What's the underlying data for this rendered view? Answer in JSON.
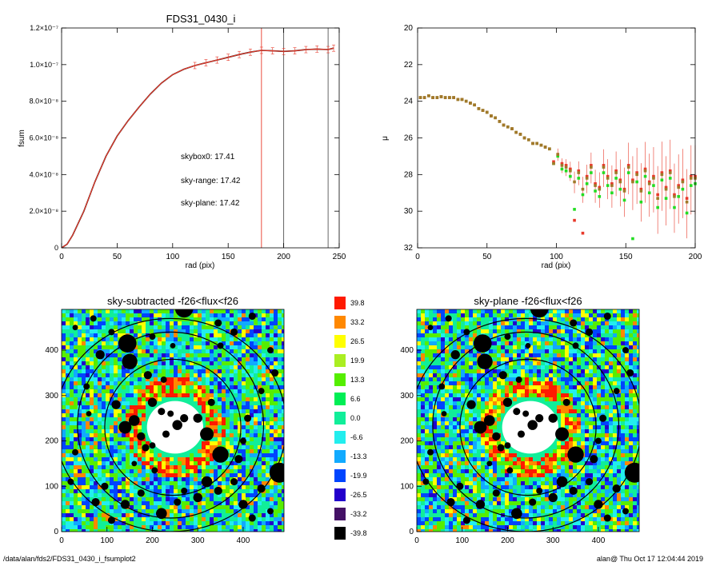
{
  "footer": {
    "path": "/data/alan/fds2/FDS31_0430_i_fsumplot2",
    "stamp": "alan@  Thu Oct 17 12:04:44 2019"
  },
  "chart_data": [
    {
      "id": "fsum",
      "type": "line",
      "title": "FDS31_0430_i",
      "xlabel": "rad (pix)",
      "ylabel": "fsum",
      "xlim": [
        0,
        250
      ],
      "ylim": [
        0,
        1.2e-07
      ],
      "xticks": [
        "0",
        "50",
        "100",
        "150",
        "200",
        "250"
      ],
      "yticks": [
        "0",
        "2.0×10⁻⁸",
        "4.0×10⁻⁸",
        "6.0×10⁻⁸",
        "8.0×10⁻⁸",
        "1.0×10⁻⁷",
        "1.2×10⁻⁷"
      ],
      "x": [
        0,
        5,
        10,
        20,
        30,
        40,
        50,
        60,
        70,
        80,
        90,
        100,
        110,
        120,
        130,
        140,
        150,
        160,
        170,
        180,
        190,
        200,
        210,
        220,
        230,
        240,
        245
      ],
      "series": [
        {
          "color": "#000000",
          "values": [
            0,
            2e-09,
            7e-09,
            2e-08,
            3.6e-08,
            5e-08,
            6.1e-08,
            6.95e-08,
            7.7e-08,
            8.4e-08,
            9e-08,
            9.45e-08,
            9.75e-08,
            9.95e-08,
            1.01e-07,
            1.025e-07,
            1.04e-07,
            1.055e-07,
            1.068e-07,
            1.078e-07,
            1.075e-07,
            1.072e-07,
            1.075e-07,
            1.082e-07,
            1.085e-07,
            1.082e-07,
            1.09e-07
          ]
        },
        {
          "color": "#e8392a",
          "values": [
            0,
            2e-09,
            7e-09,
            2e-08,
            3.6e-08,
            5e-08,
            6.1e-08,
            6.95e-08,
            7.7e-08,
            8.4e-08,
            9e-08,
            9.45e-08,
            9.75e-08,
            9.95e-08,
            1.01e-07,
            1.025e-07,
            1.04e-07,
            1.055e-07,
            1.068e-07,
            1.078e-07,
            1.075e-07,
            1.072e-07,
            1.075e-07,
            1.082e-07,
            1.085e-07,
            1.082e-07,
            1.09e-07
          ]
        }
      ],
      "vlines": [
        {
          "x": 180,
          "color": "#e8392a"
        },
        {
          "x": 200,
          "color": "#555555"
        },
        {
          "x": 240,
          "color": "#555555"
        }
      ],
      "annotations": [
        {
          "text": "skybox0: 17.41",
          "color": "#000000"
        },
        {
          "text": "sky-range: 17.42",
          "color": "#e8392a"
        },
        {
          "text": "sky-plane: 17.42",
          "color": "#22dd22"
        }
      ]
    },
    {
      "id": "mu",
      "type": "scatter",
      "title": "",
      "xlabel": "rad (pix)",
      "ylabel": "μ",
      "xlim": [
        0,
        200
      ],
      "ylim": [
        32,
        20
      ],
      "xticks": [
        "0",
        "50",
        "100",
        "150",
        "200"
      ],
      "yticks": [
        "20",
        "22",
        "24",
        "26",
        "28",
        "30",
        "32"
      ],
      "x": [
        2,
        5,
        8,
        11,
        14,
        17,
        20,
        23,
        26,
        29,
        32,
        35,
        38,
        41,
        44,
        47,
        50,
        53,
        56,
        59,
        62,
        65,
        68,
        71,
        74,
        77,
        80,
        83,
        86,
        89,
        92,
        95,
        98,
        101,
        104,
        107,
        110,
        113,
        116,
        119,
        122,
        125,
        128,
        131,
        134,
        137,
        140,
        143,
        146,
        149,
        152,
        155,
        158,
        161,
        164,
        167,
        170,
        173,
        176,
        179,
        182,
        185,
        188,
        191,
        194,
        197,
        200
      ],
      "series": [
        {
          "color": "#a07a2a",
          "values": [
            23.8,
            23.8,
            23.7,
            23.8,
            23.8,
            23.75,
            23.8,
            23.8,
            23.8,
            23.9,
            23.9,
            24.0,
            24.1,
            24.2,
            24.4,
            24.5,
            24.6,
            24.8,
            24.9,
            25.1,
            25.3,
            25.4,
            25.5,
            25.7,
            25.8,
            26.0,
            26.1,
            26.3,
            26.3,
            26.4,
            26.5,
            26.6,
            27.4,
            26.9,
            27.5,
            27.6,
            27.8,
            28.4,
            27.9,
            28.8,
            28.2,
            27.6,
            28.6,
            28.8,
            27.6,
            28.2,
            28.6,
            27.9,
            28.4,
            28.9,
            27.6,
            28.4,
            28.0,
            28.9,
            27.8,
            28.5,
            28.2,
            29.3,
            28.0,
            28.8,
            27.9,
            29.2,
            28.7,
            28.4,
            29.5,
            28.2,
            28.2
          ]
        },
        {
          "color": "#22dd22",
          "values": [
            23.8,
            23.8,
            23.7,
            23.8,
            23.8,
            23.75,
            23.8,
            23.8,
            23.8,
            23.9,
            23.9,
            24.0,
            24.1,
            24.2,
            24.4,
            24.5,
            24.6,
            24.8,
            24.9,
            25.1,
            25.3,
            25.4,
            25.5,
            25.7,
            25.8,
            26.0,
            26.1,
            26.3,
            26.3,
            26.4,
            26.5,
            26.6,
            27.4,
            27.0,
            27.7,
            27.8,
            28.1,
            29.9,
            28.2,
            29.1,
            28.5,
            27.9,
            28.9,
            29.2,
            27.9,
            28.6,
            29.0,
            28.2,
            28.8,
            29.4,
            27.9,
            31.5,
            28.4,
            29.5,
            28.1,
            29.0,
            28.6,
            29.8,
            28.3,
            29.3,
            28.2,
            29.8,
            29.2,
            28.8,
            30.1,
            28.6,
            28.5
          ]
        },
        {
          "color": "#e8392a",
          "values": [
            23.8,
            23.8,
            23.7,
            23.8,
            23.8,
            23.75,
            23.8,
            23.8,
            23.8,
            23.9,
            23.9,
            24.0,
            24.1,
            24.2,
            24.4,
            24.5,
            24.6,
            24.8,
            24.9,
            25.1,
            25.3,
            25.4,
            25.5,
            25.7,
            25.8,
            26.0,
            26.1,
            26.3,
            26.3,
            26.4,
            26.5,
            26.6,
            27.3,
            26.9,
            27.4,
            27.5,
            27.7,
            30.5,
            27.8,
            31.2,
            28.1,
            27.5,
            28.5,
            28.7,
            27.5,
            28.1,
            28.5,
            27.8,
            28.3,
            28.8,
            27.5,
            28.3,
            27.9,
            28.8,
            27.7,
            28.4,
            28.1,
            29.1,
            27.9,
            28.7,
            27.8,
            29.1,
            28.6,
            28.3,
            29.3,
            28.1,
            28.1
          ]
        }
      ]
    },
    {
      "id": "sky-subtracted",
      "type": "heatmap",
      "title": "sky-subtracted -f26<flux<f26",
      "xlim": [
        0,
        490
      ],
      "ylim": [
        0,
        490
      ],
      "xticks": [
        "0",
        "100",
        "200",
        "300",
        "400"
      ],
      "yticks": [
        "0",
        "100",
        "200",
        "300",
        "400"
      ]
    },
    {
      "id": "sky-plane",
      "type": "heatmap",
      "title": "sky-plane -f26<flux<f26",
      "xlim": [
        0,
        490
      ],
      "ylim": [
        0,
        490
      ],
      "xticks": [
        "0",
        "100",
        "200",
        "300",
        "400"
      ],
      "yticks": [
        "0",
        "100",
        "200",
        "300",
        "400"
      ]
    }
  ],
  "colorbar": {
    "levels": [
      "39.8",
      "33.2",
      "26.5",
      "19.9",
      "13.3",
      "6.6",
      "0.0",
      "-6.6",
      "-13.3",
      "-19.9",
      "-26.5",
      "-33.2",
      "-39.8"
    ],
    "colors": [
      "#ff1a00",
      "#ff8800",
      "#ffff00",
      "#aaee22",
      "#55ee00",
      "#00ee55",
      "#11ee99",
      "#22eeee",
      "#11aaff",
      "#0044ff",
      "#2200cc",
      "#441166",
      "#000000"
    ]
  },
  "sky_map": {
    "colors": [
      "#ff1a00",
      "#ff8800",
      "#ffff00",
      "#55ee00",
      "#11ee99",
      "#22eeee",
      "#11aaff",
      "#0044ff",
      "#2200cc"
    ],
    "hole_color": "#ffffff",
    "mask_color": "#000000",
    "ellipses_color": "#000000",
    "grid_color": "#cccccc"
  }
}
